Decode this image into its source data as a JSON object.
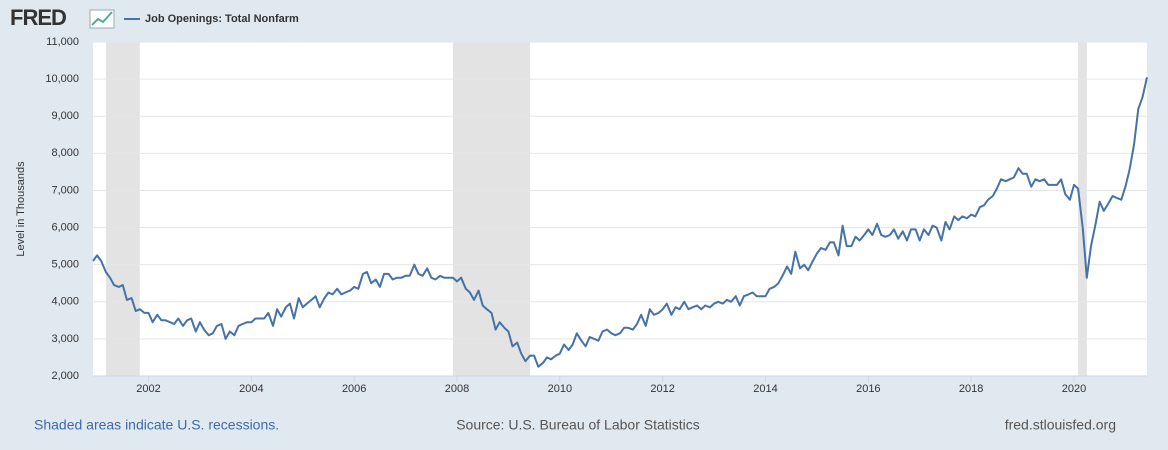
{
  "chart_data": {
    "type": "line",
    "logo": "FRED",
    "y_label": "Level in Thousands",
    "recession_note": "Shaded areas indicate U.S. recessions.",
    "source": "Source: U.S. Bureau of Labor Statistics",
    "site": "fred.stlouisfed.org",
    "xlim": [
      2000.92,
      2021.42
    ],
    "xticks": [
      2002,
      2004,
      2006,
      2008,
      2010,
      2012,
      2014,
      2016,
      2018,
      2020
    ],
    "ylim": [
      2000,
      11000
    ],
    "yticks": [
      {
        "value": 2000,
        "label": "2,000"
      },
      {
        "value": 3000,
        "label": "3,000"
      },
      {
        "value": 4000,
        "label": "4,000"
      },
      {
        "value": 5000,
        "label": "5,000"
      },
      {
        "value": 6000,
        "label": "6,000"
      },
      {
        "value": 7000,
        "label": "7,000"
      },
      {
        "value": 8000,
        "label": "8,000"
      },
      {
        "value": 9000,
        "label": "9,000"
      },
      {
        "value": 10000,
        "label": "10,000"
      },
      {
        "value": 11000,
        "label": "11,000"
      }
    ],
    "grid": true,
    "recessions": [
      [
        2001.17,
        2001.83
      ],
      [
        2007.92,
        2009.42
      ],
      [
        2020.08,
        2020.25
      ]
    ],
    "x": [
      2000.92,
      2001,
      2001.08,
      2001.17,
      2001.25,
      2001.33,
      2001.42,
      2001.5,
      2001.58,
      2001.67,
      2001.75,
      2001.83,
      2001.92,
      2002,
      2002.08,
      2002.17,
      2002.25,
      2002.33,
      2002.42,
      2002.5,
      2002.58,
      2002.67,
      2002.75,
      2002.83,
      2002.92,
      2003,
      2003.08,
      2003.17,
      2003.25,
      2003.33,
      2003.42,
      2003.5,
      2003.58,
      2003.67,
      2003.75,
      2003.83,
      2003.92,
      2004,
      2004.08,
      2004.17,
      2004.25,
      2004.33,
      2004.42,
      2004.5,
      2004.58,
      2004.67,
      2004.75,
      2004.83,
      2004.92,
      2005,
      2005.08,
      2005.17,
      2005.25,
      2005.33,
      2005.42,
      2005.5,
      2005.58,
      2005.67,
      2005.75,
      2005.83,
      2005.92,
      2006,
      2006.08,
      2006.17,
      2006.25,
      2006.33,
      2006.42,
      2006.5,
      2006.58,
      2006.67,
      2006.75,
      2006.83,
      2006.92,
      2007,
      2007.08,
      2007.17,
      2007.25,
      2007.33,
      2007.42,
      2007.5,
      2007.58,
      2007.67,
      2007.75,
      2007.83,
      2007.92,
      2008,
      2008.08,
      2008.17,
      2008.25,
      2008.33,
      2008.42,
      2008.5,
      2008.58,
      2008.67,
      2008.75,
      2008.83,
      2008.92,
      2009,
      2009.08,
      2009.17,
      2009.25,
      2009.33,
      2009.42,
      2009.5,
      2009.58,
      2009.67,
      2009.75,
      2009.83,
      2009.92,
      2010,
      2010.08,
      2010.17,
      2010.25,
      2010.33,
      2010.42,
      2010.5,
      2010.58,
      2010.67,
      2010.75,
      2010.83,
      2010.92,
      2011,
      2011.08,
      2011.17,
      2011.25,
      2011.33,
      2011.42,
      2011.5,
      2011.58,
      2011.67,
      2011.75,
      2011.83,
      2011.92,
      2012,
      2012.08,
      2012.17,
      2012.25,
      2012.33,
      2012.42,
      2012.5,
      2012.58,
      2012.67,
      2012.75,
      2012.83,
      2012.92,
      2013,
      2013.08,
      2013.17,
      2013.25,
      2013.33,
      2013.42,
      2013.5,
      2013.58,
      2013.67,
      2013.75,
      2013.83,
      2013.92,
      2014,
      2014.08,
      2014.17,
      2014.25,
      2014.33,
      2014.42,
      2014.5,
      2014.58,
      2014.67,
      2014.75,
      2014.83,
      2014.92,
      2015,
      2015.08,
      2015.17,
      2015.25,
      2015.33,
      2015.42,
      2015.5,
      2015.58,
      2015.67,
      2015.75,
      2015.83,
      2015.92,
      2016,
      2016.08,
      2016.17,
      2016.25,
      2016.33,
      2016.42,
      2016.5,
      2016.58,
      2016.67,
      2016.75,
      2016.83,
      2016.92,
      2017,
      2017.08,
      2017.17,
      2017.25,
      2017.33,
      2017.42,
      2017.5,
      2017.58,
      2017.67,
      2017.75,
      2017.83,
      2017.92,
      2018,
      2018.08,
      2018.17,
      2018.25,
      2018.33,
      2018.42,
      2018.5,
      2018.58,
      2018.67,
      2018.75,
      2018.83,
      2018.92,
      2019,
      2019.08,
      2019.17,
      2019.25,
      2019.33,
      2019.42,
      2019.5,
      2019.58,
      2019.67,
      2019.75,
      2019.83,
      2019.92,
      2020,
      2020.08,
      2020.17,
      2020.25,
      2020.33,
      2020.42,
      2020.5,
      2020.58,
      2020.67,
      2020.75,
      2020.83,
      2020.92,
      2021,
      2021.08,
      2021.17,
      2021.25,
      2021.33,
      2021.42
    ],
    "series": [
      {
        "name": "Job Openings: Total Nonfarm",
        "color": "#4572a7",
        "values": [
          5100,
          5250,
          5100,
          4800,
          4650,
          4450,
          4400,
          4450,
          4050,
          4100,
          3750,
          3800,
          3700,
          3700,
          3450,
          3650,
          3500,
          3500,
          3450,
          3400,
          3550,
          3350,
          3500,
          3550,
          3200,
          3450,
          3250,
          3100,
          3150,
          3350,
          3400,
          3000,
          3200,
          3100,
          3350,
          3400,
          3450,
          3450,
          3550,
          3550,
          3550,
          3700,
          3350,
          3800,
          3600,
          3850,
          3950,
          3550,
          4100,
          3850,
          3950,
          4050,
          4150,
          3850,
          4100,
          4250,
          4200,
          4350,
          4200,
          4250,
          4300,
          4400,
          4350,
          4750,
          4800,
          4500,
          4600,
          4400,
          4750,
          4750,
          4600,
          4650,
          4650,
          4700,
          4700,
          5000,
          4750,
          4700,
          4900,
          4650,
          4600,
          4700,
          4650,
          4650,
          4650,
          4550,
          4650,
          4350,
          4250,
          4050,
          4300,
          3900,
          3800,
          3700,
          3250,
          3450,
          3300,
          3200,
          2800,
          2900,
          2600,
          2400,
          2550,
          2550,
          2250,
          2350,
          2500,
          2450,
          2550,
          2600,
          2850,
          2700,
          2850,
          3150,
          2950,
          2800,
          3050,
          3000,
          2950,
          3200,
          3250,
          3150,
          3100,
          3150,
          3300,
          3300,
          3250,
          3400,
          3650,
          3350,
          3800,
          3650,
          3700,
          3800,
          3950,
          3650,
          3850,
          3800,
          4000,
          3800,
          3850,
          3900,
          3800,
          3900,
          3850,
          3950,
          4000,
          3950,
          4050,
          4000,
          4150,
          3900,
          4150,
          4200,
          4250,
          4150,
          4150,
          4150,
          4350,
          4400,
          4500,
          4700,
          4950,
          4750,
          5350,
          4900,
          5000,
          4850,
          5100,
          5300,
          5450,
          5400,
          5600,
          5600,
          5250,
          6050,
          5500,
          5500,
          5750,
          5650,
          5800,
          5950,
          5800,
          6100,
          5800,
          5750,
          5800,
          5950,
          5700,
          5900,
          5650,
          5950,
          5950,
          5650,
          5950,
          5800,
          6050,
          6000,
          5650,
          6150,
          5950,
          6300,
          6200,
          6300,
          6250,
          6350,
          6300,
          6550,
          6600,
          6750,
          6850,
          7050,
          7300,
          7250,
          7300,
          7350,
          7600,
          7450,
          7450,
          7100,
          7300,
          7250,
          7300,
          7150,
          7150,
          7150,
          7300,
          6900,
          6750,
          7150,
          7050,
          6000,
          4650,
          5500,
          6100,
          6700,
          6450,
          6650,
          6850,
          6800,
          6750,
          7100,
          7550,
          8250,
          9200,
          9500,
          10050
        ]
      }
    ]
  }
}
